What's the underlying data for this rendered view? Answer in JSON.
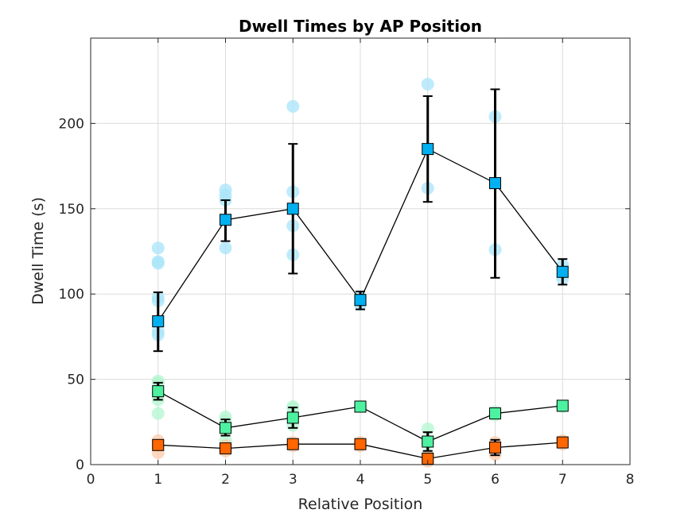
{
  "chart_data": {
    "type": "line",
    "title": "Dwell Times by AP Position",
    "xlabel": "Relative Position",
    "ylabel": "Dwell Time (s)",
    "xlim": [
      0,
      8
    ],
    "ylim": [
      0,
      250
    ],
    "xticks": [
      0,
      1,
      2,
      3,
      4,
      5,
      6,
      7,
      8
    ],
    "yticks": [
      0,
      50,
      100,
      150,
      200
    ],
    "grid": true,
    "legend": "none",
    "series": [
      {
        "color": "#00b0f0",
        "light_color": "#a8e4fa",
        "x": [
          1,
          2,
          3,
          4,
          5,
          6,
          7
        ],
        "mean": [
          84,
          143.5,
          150,
          96.5,
          185,
          165,
          113
        ],
        "err_low": [
          66.5,
          131,
          112,
          91,
          154,
          109.5,
          105.5
        ],
        "err_high": [
          101,
          155,
          188,
          101.5,
          216,
          220,
          120.5
        ],
        "raw": [
          [
            76,
            78,
            96,
            98,
            118,
            119,
            127
          ],
          [
            127,
            155,
            158,
            161
          ],
          [
            123,
            140,
            160,
            210
          ],
          [
            94,
            98
          ],
          [
            162,
            223
          ],
          [
            126,
            204
          ],
          [
            109,
            117
          ]
        ]
      },
      {
        "color": "#4df2a0",
        "light_color": "#b3f5cf",
        "x": [
          1,
          2,
          3,
          4,
          5,
          6,
          7
        ],
        "mean": [
          43,
          21.5,
          27.5,
          34,
          13.5,
          30,
          34.5
        ],
        "err_low": [
          38,
          17,
          21.5,
          34,
          8,
          27.5,
          34.5
        ],
        "err_high": [
          48,
          26.5,
          33.5,
          34,
          19,
          32.5,
          34.5
        ],
        "raw": [
          [
            30,
            38,
            42,
            48,
            49
          ],
          [
            14,
            21,
            26,
            28
          ],
          [
            23,
            28,
            33,
            34
          ],
          [
            34
          ],
          [
            6,
            13,
            21
          ],
          [
            29,
            31
          ],
          [
            34
          ]
        ]
      },
      {
        "color": "#ff6600",
        "light_color": "#fcc9a8",
        "x": [
          1,
          2,
          3,
          4,
          5,
          6,
          7
        ],
        "mean": [
          11.5,
          9.5,
          12,
          12,
          3.5,
          10,
          13
        ],
        "err_low": [
          9.5,
          8,
          10,
          10,
          1.5,
          5.5,
          11
        ],
        "err_high": [
          14,
          11,
          14,
          14,
          5.5,
          14.5,
          15
        ],
        "raw": [
          [
            7,
            11,
            14
          ],
          [
            8,
            11
          ],
          [
            11,
            13
          ],
          [
            11,
            13
          ],
          [
            2,
            5
          ],
          [
            6,
            13
          ],
          [
            12,
            14
          ]
        ]
      }
    ]
  }
}
